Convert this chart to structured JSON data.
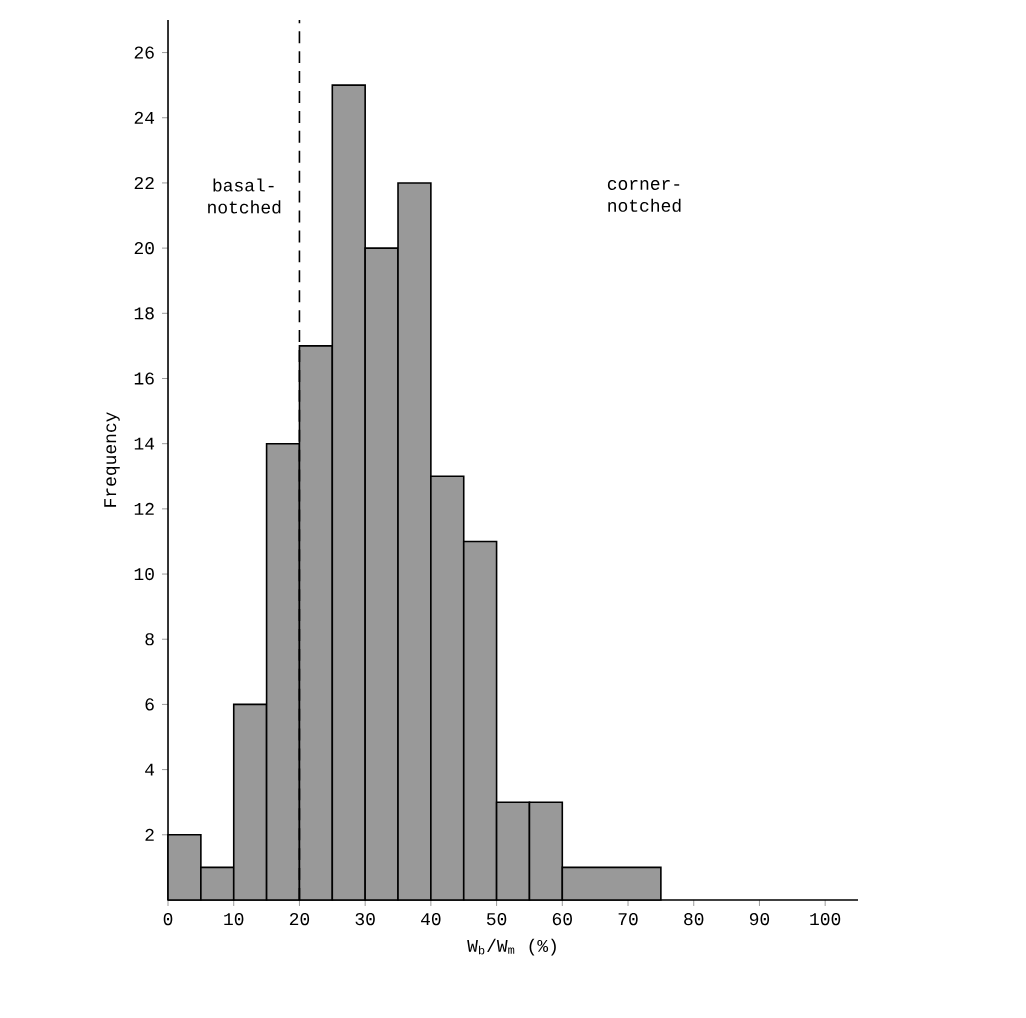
{
  "chart_data": {
    "type": "histogram",
    "bins": [
      0,
      5,
      10,
      15,
      20,
      25,
      30,
      35,
      40,
      45,
      50,
      55,
      60,
      75
    ],
    "values": [
      2,
      1,
      6,
      14,
      17,
      25,
      20,
      22,
      13,
      11,
      3,
      3,
      1
    ],
    "color": "#999999",
    "xlabel": "W$_{b}$/W$_{m}$ (%)",
    "ylabel": "Frequency",
    "xlim": [
      0,
      105
    ],
    "xticks": [
      0,
      10,
      20,
      30,
      40,
      50,
      60,
      70,
      80,
      90,
      100
    ],
    "ylim": [
      0,
      27
    ],
    "yticks": [
      2,
      4,
      6,
      8,
      10,
      12,
      14,
      16,
      18,
      20,
      22,
      24,
      26
    ],
    "ref_lines": [
      {
        "axis": "x",
        "value": 20,
        "line_style": "dashed"
      }
    ],
    "annotations": [
      "basal-notched",
      "corner-notched"
    ]
  }
}
